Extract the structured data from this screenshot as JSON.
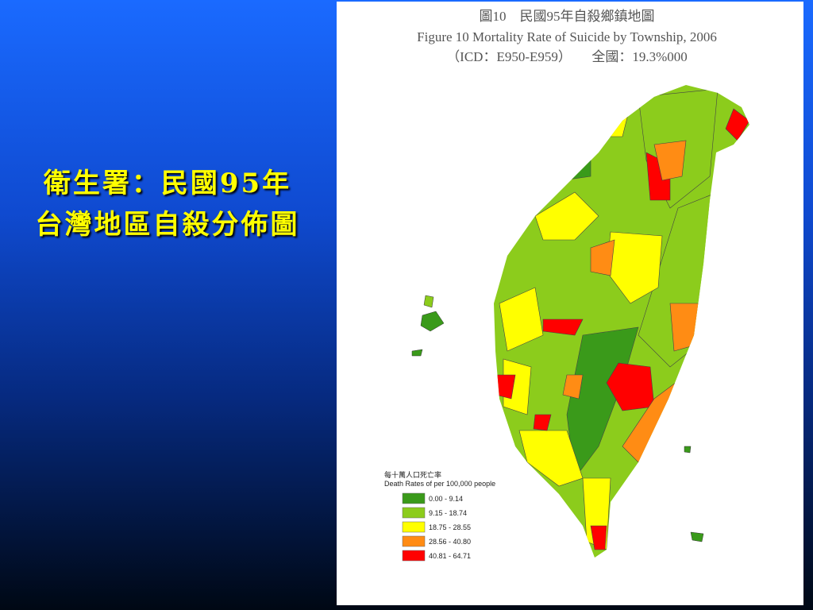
{
  "slide": {
    "title_lines": [
      "衛生署：民國95年",
      "台灣地區自殺分佈圖"
    ]
  },
  "map": {
    "title_lines": [
      "圖10　民國95年自殺鄉鎮地圖",
      "Figure 10 Mortality Rate of Suicide by Township, 2006",
      "（ICD：E950-E959）　　全國：19.3%000"
    ],
    "legend": {
      "title": "每十萬人口死亡率",
      "subtitle": "Death Rates of per 100,000 people",
      "items": [
        {
          "label": "0.00 - 9.14",
          "color": "#3a9a1a"
        },
        {
          "label": "9.15 - 18.74",
          "color": "#8ccc1c"
        },
        {
          "label": "18.75 - 28.55",
          "color": "#ffff00"
        },
        {
          "label": "28.56 - 40.80",
          "color": "#ff8c14"
        },
        {
          "label": "40.81 - 64.71",
          "color": "#ff0000"
        }
      ]
    }
  }
}
